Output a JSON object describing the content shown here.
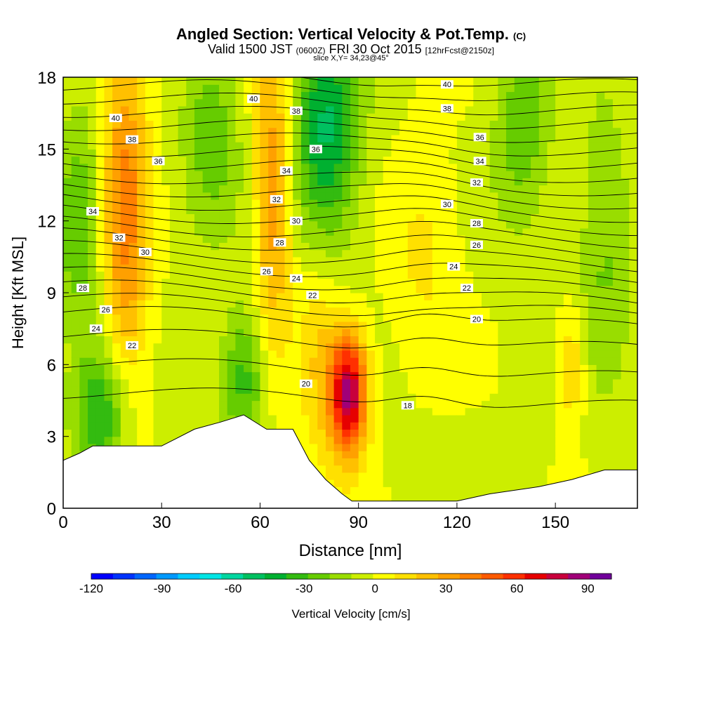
{
  "titles": {
    "main": "Angled Section: Vertical Velocity & Pot.Temp.",
    "main_suffix": "(C)",
    "sub_prefix": "Valid 1500 JST",
    "sub_utc": "(0600Z)",
    "sub_date": "FRI 30 Oct 2015",
    "sub_fcst": "[12hrFcst@2150z]",
    "slice": "slice X,Y= 34,23@45°"
  },
  "chart_data": {
    "type": "heatmap",
    "title": "Angled Section: Vertical Velocity & Pot.Temp. (C)",
    "xlabel": "Distance [nm]",
    "ylabel": "Height [Kft MSL]",
    "xlim": [
      0,
      175
    ],
    "ylim": [
      0,
      18
    ],
    "xticks": [
      0,
      30,
      60,
      90,
      120,
      150
    ],
    "yticks": [
      0,
      3,
      6,
      9,
      12,
      15,
      18
    ],
    "colorbar": {
      "label": "Vertical Velocity [cm/s]",
      "range": [
        -120,
        100
      ],
      "step": 10,
      "ticks": [
        -120,
        -90,
        -60,
        -30,
        0,
        30,
        60,
        90
      ],
      "colors": [
        "#0000ff",
        "#0033ff",
        "#0066ff",
        "#0099ff",
        "#00ccff",
        "#00e5e5",
        "#00d6a0",
        "#00c060",
        "#00b030",
        "#33bb10",
        "#66cc00",
        "#99dd00",
        "#ccee00",
        "#ffff00",
        "#ffe000",
        "#ffc000",
        "#ffa000",
        "#ff8000",
        "#ff5a00",
        "#ff3000",
        "#e60000",
        "#c8003c",
        "#a00078",
        "#70009a"
      ]
    },
    "terrain_kft": [
      [
        0,
        2.0
      ],
      [
        5,
        2.3
      ],
      [
        9,
        2.6
      ],
      [
        20,
        2.6
      ],
      [
        30,
        2.6
      ],
      [
        40,
        3.3
      ],
      [
        48,
        3.6
      ],
      [
        55,
        3.9
      ],
      [
        62,
        3.3
      ],
      [
        70,
        3.3
      ],
      [
        75,
        2.0
      ],
      [
        80,
        1.2
      ],
      [
        85,
        0.6
      ],
      [
        88,
        0.3
      ],
      [
        100,
        0.3
      ],
      [
        110,
        0.3
      ],
      [
        120,
        0.3
      ],
      [
        130,
        0.6
      ],
      [
        145,
        0.9
      ],
      [
        155,
        1.2
      ],
      [
        165,
        1.6
      ],
      [
        175,
        1.6
      ]
    ],
    "isentrope_labels": [
      {
        "x": 16,
        "y": 16.3,
        "v": "40"
      },
      {
        "x": 21,
        "y": 15.4,
        "v": "38"
      },
      {
        "x": 29,
        "y": 14.5,
        "v": "36"
      },
      {
        "x": 9,
        "y": 12.4,
        "v": "34"
      },
      {
        "x": 17,
        "y": 11.3,
        "v": "32"
      },
      {
        "x": 25,
        "y": 10.7,
        "v": "30"
      },
      {
        "x": 6,
        "y": 9.2,
        "v": "28"
      },
      {
        "x": 13,
        "y": 8.3,
        "v": "26"
      },
      {
        "x": 10,
        "y": 7.5,
        "v": "24"
      },
      {
        "x": 21,
        "y": 6.8,
        "v": "22"
      },
      {
        "x": 58,
        "y": 17.1,
        "v": "40"
      },
      {
        "x": 71,
        "y": 16.6,
        "v": "38"
      },
      {
        "x": 77,
        "y": 15.0,
        "v": "36"
      },
      {
        "x": 68,
        "y": 14.1,
        "v": "34"
      },
      {
        "x": 65,
        "y": 12.9,
        "v": "32"
      },
      {
        "x": 71,
        "y": 12.0,
        "v": "30"
      },
      {
        "x": 66,
        "y": 11.1,
        "v": "28"
      },
      {
        "x": 62,
        "y": 9.9,
        "v": "26"
      },
      {
        "x": 71,
        "y": 9.6,
        "v": "24"
      },
      {
        "x": 76,
        "y": 8.9,
        "v": "22"
      },
      {
        "x": 74,
        "y": 5.2,
        "v": "20"
      },
      {
        "x": 117,
        "y": 17.7,
        "v": "40"
      },
      {
        "x": 117,
        "y": 16.7,
        "v": "38"
      },
      {
        "x": 127,
        "y": 15.5,
        "v": "36"
      },
      {
        "x": 127,
        "y": 14.5,
        "v": "34"
      },
      {
        "x": 126,
        "y": 13.6,
        "v": "32"
      },
      {
        "x": 117,
        "y": 12.7,
        "v": "30"
      },
      {
        "x": 126,
        "y": 11.9,
        "v": "28"
      },
      {
        "x": 126,
        "y": 11.0,
        "v": "26"
      },
      {
        "x": 119,
        "y": 10.1,
        "v": "24"
      },
      {
        "x": 123,
        "y": 9.2,
        "v": "22"
      },
      {
        "x": 126,
        "y": 7.9,
        "v": "20"
      },
      {
        "x": 105,
        "y": 4.3,
        "v": "18"
      }
    ],
    "velocity_features": [
      {
        "x": 19,
        "y": 12.5,
        "sx": 5,
        "sy": 6,
        "v": 45
      },
      {
        "x": 64,
        "y": 13.5,
        "sx": 4,
        "sy": 5,
        "v": 40
      },
      {
        "x": 87,
        "y": 4.8,
        "sx": 4,
        "sy": 1.8,
        "v": 95
      },
      {
        "x": 78,
        "y": 6.5,
        "sx": 5,
        "sy": 3,
        "v": 25
      },
      {
        "x": 80,
        "y": 15.5,
        "sx": 7,
        "sy": 3.5,
        "v": -50
      },
      {
        "x": 5,
        "y": 12,
        "sx": 5,
        "sy": 3,
        "v": -30
      },
      {
        "x": 12,
        "y": 3.8,
        "sx": 6,
        "sy": 2,
        "v": -40
      },
      {
        "x": 55,
        "y": 5.5,
        "sx": 5,
        "sy": 2,
        "v": -35
      },
      {
        "x": 45,
        "y": 16,
        "sx": 6,
        "sy": 3,
        "v": -25
      },
      {
        "x": 140,
        "y": 16,
        "sx": 6,
        "sy": 3,
        "v": -25
      },
      {
        "x": 165,
        "y": 11,
        "sx": 6,
        "sy": 4,
        "v": -20
      },
      {
        "x": 155,
        "y": 6,
        "sx": 3,
        "sy": 1.8,
        "v": 25
      },
      {
        "x": 110,
        "y": 11,
        "sx": 8,
        "sy": 3,
        "v": 15
      }
    ]
  }
}
